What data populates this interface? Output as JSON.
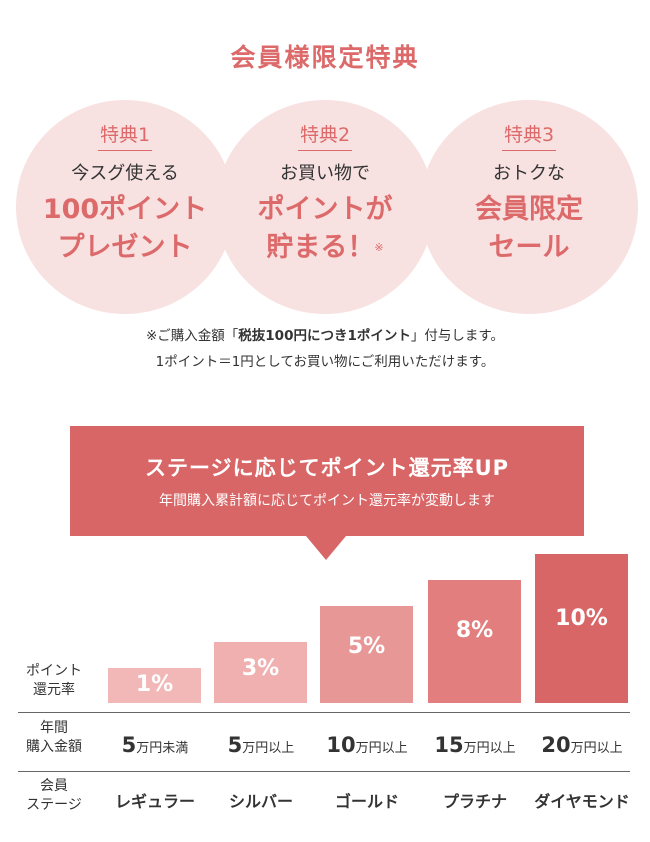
{
  "title": "会員様限定特典",
  "perks": [
    {
      "label": "特典1",
      "lead": "今スグ使える",
      "big1": "100ポイント",
      "big2": "プレゼント",
      "mark": ""
    },
    {
      "label": "特典2",
      "lead": "お買い物で",
      "big1": "ポイントが",
      "big2": "貯まる！",
      "mark": "※"
    },
    {
      "label": "特典3",
      "lead": "おトクな",
      "big1": "会員限定",
      "big2": "セール",
      "mark": ""
    }
  ],
  "note": {
    "line1_pre": "※ご購入金額「",
    "line1_bold": "税抜100円につき1ポイント",
    "line1_post": "」付与します。",
    "line2": "1ポイント＝1円としてお買い物にご利用いただけます。"
  },
  "banner": {
    "heading": "ステージに応じてポイント還元率UP",
    "sub": "年間購入累計額に応じてポイント還元率が変動します"
  },
  "row_labels": {
    "rate": [
      "ポイント",
      "還元率"
    ],
    "amount": [
      "年間",
      "購入金額"
    ],
    "stage": [
      "会員",
      "ステージ"
    ]
  },
  "stages": [
    {
      "rate": "1%",
      "amount_num": "5",
      "amount_unit": "万円未満",
      "name": "レギュラー",
      "color": "#f2b8b8"
    },
    {
      "rate": "3%",
      "amount_num": "5",
      "amount_unit": "万円以上",
      "name": "シルバー",
      "color": "#f0b0b0"
    },
    {
      "rate": "5%",
      "amount_num": "10",
      "amount_unit": "万円以上",
      "name": "ゴールド",
      "color": "#e89797"
    },
    {
      "rate": "8%",
      "amount_num": "15",
      "amount_unit": "万円以上",
      "name": "プラチナ",
      "color": "#e27e7e"
    },
    {
      "rate": "10%",
      "amount_num": "20",
      "amount_unit": "万円以上",
      "name": "ダイヤモンド",
      "color": "#d96666"
    }
  ]
}
